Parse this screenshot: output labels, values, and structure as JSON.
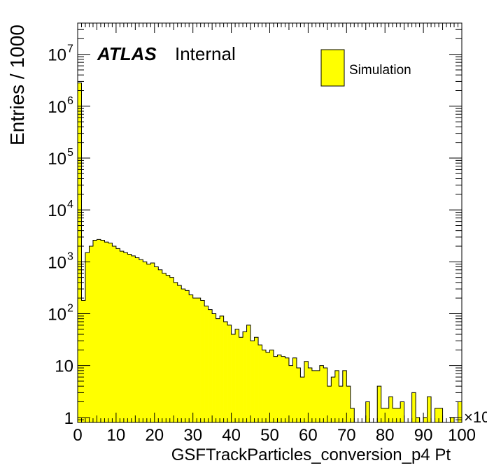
{
  "chart_data": {
    "type": "bar",
    "style": "histogram",
    "title": "",
    "xlabel": "GSFTrackParticles_conversion_p4 Pt",
    "ylabel": "Entries / 1000",
    "x_exponent_label": "×10",
    "xlim": [
      0,
      100
    ],
    "ylim": [
      0.8,
      40000000
    ],
    "yscale": "log",
    "bin_width": 1,
    "x_tick_labels": [
      "0",
      "10",
      "20",
      "30",
      "40",
      "50",
      "60",
      "70",
      "80",
      "90",
      "100"
    ],
    "y_ticks": [
      {
        "value": 1,
        "base": "1",
        "exp": ""
      },
      {
        "value": 10,
        "base": "10",
        "exp": ""
      },
      {
        "value": 100,
        "base": "10",
        "exp": "2"
      },
      {
        "value": 1000,
        "base": "10",
        "exp": "3"
      },
      {
        "value": 10000,
        "base": "10",
        "exp": "4"
      },
      {
        "value": 100000,
        "base": "10",
        "exp": "5"
      },
      {
        "value": 1000000,
        "base": "10",
        "exp": "6"
      },
      {
        "value": 10000000,
        "base": "10",
        "exp": "7"
      }
    ],
    "series": [
      {
        "name": "Simulation",
        "color": "#ffff00",
        "values": [
          2800000,
          180,
          1500,
          2000,
          2600,
          2700,
          2600,
          2400,
          2300,
          2000,
          1800,
          1600,
          1500,
          1400,
          1300,
          1200,
          1100,
          1000,
          900,
          950,
          800,
          700,
          600,
          550,
          500,
          400,
          350,
          300,
          280,
          230,
          200,
          200,
          180,
          140,
          120,
          100,
          80,
          90,
          70,
          60,
          40,
          50,
          35,
          45,
          60,
          30,
          35,
          25,
          20,
          18,
          20,
          15,
          16,
          15,
          14,
          10,
          14,
          9,
          6,
          12,
          9,
          8,
          8,
          10,
          9,
          4,
          6,
          8,
          4,
          8,
          4,
          1.5,
          0,
          0,
          0,
          2,
          0,
          0,
          4,
          1.5,
          1.5,
          2.5,
          1.5,
          1.5,
          2,
          0,
          0,
          3,
          1,
          0,
          1,
          2.5,
          0,
          1.5,
          1.5,
          0,
          0,
          1,
          0,
          2
        ]
      }
    ],
    "legend": {
      "position": "top-right",
      "entries": [
        "Simulation"
      ]
    },
    "annotations": {
      "atlas": "ATLAS",
      "status": "Internal"
    }
  }
}
